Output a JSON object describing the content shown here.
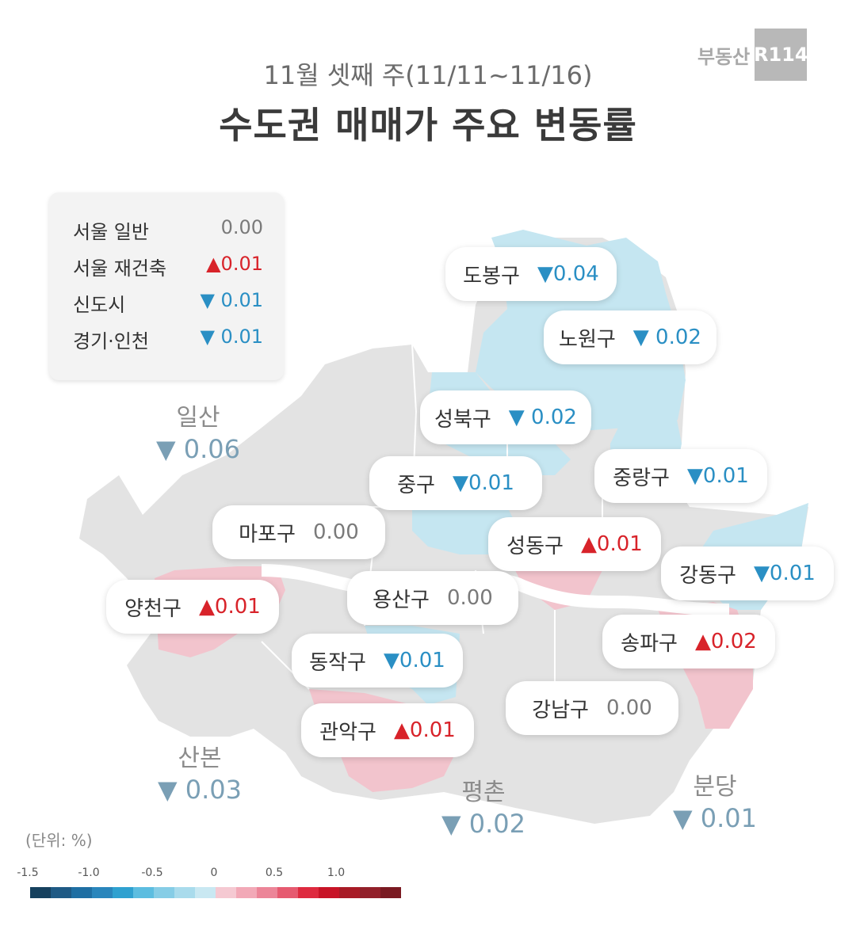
{
  "header": {
    "subtitle": "11월 셋째 주(11/11~11/16)",
    "title": "수도권 매매가 주요 변동률",
    "logo_text": "부동산",
    "logo_box": "R114"
  },
  "legend": [
    {
      "label": "서울 일반",
      "value": "0.00",
      "dir": "neutral"
    },
    {
      "label": "서울 재건축",
      "value": "▲0.01",
      "dir": "up"
    },
    {
      "label": "신도시",
      "value": "▼ 0.01",
      "dir": "down"
    },
    {
      "label": "경기·인천",
      "value": "▼ 0.01",
      "dir": "down"
    }
  ],
  "districts": [
    {
      "name": "도봉구",
      "value": "▼0.04",
      "dir": "down"
    },
    {
      "name": "노원구",
      "value": "▼ 0.02",
      "dir": "down"
    },
    {
      "name": "성북구",
      "value": "▼ 0.02",
      "dir": "down"
    },
    {
      "name": "중구",
      "value": "▼0.01",
      "dir": "down"
    },
    {
      "name": "중랑구",
      "value": "▼0.01",
      "dir": "down"
    },
    {
      "name": "마포구",
      "value": "0.00",
      "dir": "neutral"
    },
    {
      "name": "성동구",
      "value": "▲0.01",
      "dir": "up"
    },
    {
      "name": "강동구",
      "value": "▼0.01",
      "dir": "down"
    },
    {
      "name": "양천구",
      "value": "▲0.01",
      "dir": "up"
    },
    {
      "name": "용산구",
      "value": "0.00",
      "dir": "neutral"
    },
    {
      "name": "송파구",
      "value": "▲0.02",
      "dir": "up"
    },
    {
      "name": "동작구",
      "value": "▼0.01",
      "dir": "down"
    },
    {
      "name": "강남구",
      "value": "0.00",
      "dir": "neutral"
    },
    {
      "name": "관악구",
      "value": "▲0.01",
      "dir": "up"
    }
  ],
  "new_towns": [
    {
      "name": "일산",
      "value": "▼ 0.06"
    },
    {
      "name": "산본",
      "value": "▼ 0.03"
    },
    {
      "name": "평촌",
      "value": "▼ 0.02"
    },
    {
      "name": "분당",
      "value": "▼ 0.01"
    }
  ],
  "scale": {
    "unit_label": "(단위: %)",
    "ticks": [
      "-1.5",
      "-1.0",
      "-0.5",
      "0",
      "0.5",
      "1.0"
    ],
    "colors": [
      "#16415e",
      "#1f5a85",
      "#1f6fa3",
      "#2a86bc",
      "#2fa1d0",
      "#5cbde0",
      "#86cde6",
      "#a9dbec",
      "#c9e8f2",
      "#f5c9d2",
      "#f2a9b7",
      "#ec8598",
      "#e65a70",
      "#de2a3f",
      "#c81427",
      "#a81b26",
      "#92202a",
      "#7a1a22"
    ]
  }
}
